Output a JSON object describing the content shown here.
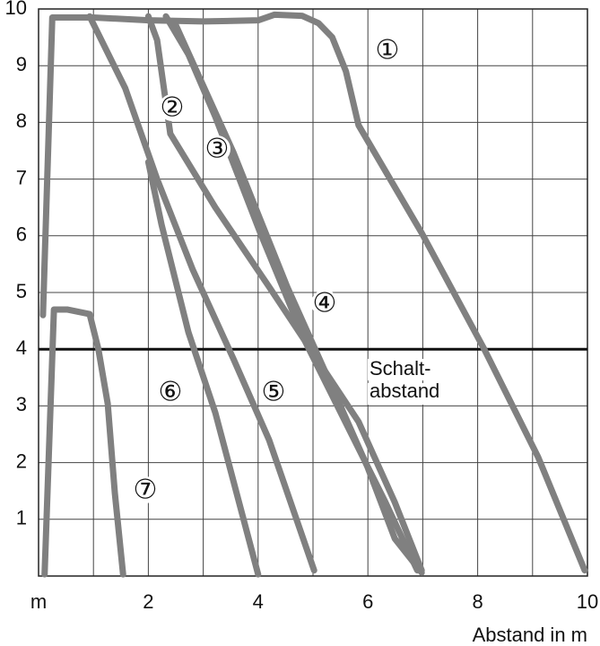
{
  "chart_data": {
    "type": "line",
    "x_label": "Abstand in m",
    "annotation": [
      "Schalt-",
      "abstand"
    ],
    "threshold": 4,
    "xlim": [
      0,
      10
    ],
    "ylim": [
      0,
      10
    ],
    "xticks": [
      {
        "value": 0,
        "label": "m"
      },
      2,
      4,
      6,
      8,
      10
    ],
    "xminor": [
      1,
      3,
      5,
      7,
      9
    ],
    "yticks": [
      1,
      2,
      3,
      4,
      5,
      6,
      7,
      8,
      9,
      10
    ],
    "grid": true,
    "series": [
      {
        "name": "①",
        "color": "#808080",
        "x": [
          0.08,
          0.25,
          1.0,
          2.0,
          3.0,
          4.0,
          4.3,
          4.8,
          5.1,
          5.35,
          5.6,
          5.83,
          6.98,
          8.12,
          9.1,
          9.95
        ],
        "values": [
          4.6,
          9.85,
          9.85,
          9.8,
          9.78,
          9.8,
          9.9,
          9.88,
          9.75,
          9.5,
          8.9,
          7.95,
          6.05,
          4.0,
          2.1,
          0.1
        ]
      },
      {
        "name": "②",
        "color": "#808080",
        "x": [
          2.0,
          2.16,
          2.24,
          2.4,
          3.22,
          4.2,
          5.18,
          5.83,
          6.49,
          6.98
        ],
        "values": [
          9.87,
          9.45,
          8.9,
          7.8,
          6.5,
          5.1,
          3.67,
          2.72,
          1.3,
          0.1
        ]
      },
      {
        "name": "③",
        "color": "#808080",
        "x": [
          2.32,
          2.73,
          3.22,
          4.04,
          4.85,
          5.67,
          6.32,
          6.9
        ],
        "values": [
          9.87,
          9.2,
          8.1,
          6.05,
          4.15,
          2.56,
          1.3,
          0.1
        ]
      },
      {
        "name": "④",
        "color": "#808080",
        "x": [
          2.48,
          3.55,
          4.53,
          5.34,
          5.99,
          6.49,
          6.98
        ],
        "values": [
          9.76,
          7.47,
          5.1,
          3.35,
          1.93,
          0.66,
          0.06
        ]
      },
      {
        "name": "⑤",
        "color": "#808080",
        "x": [
          0.93,
          1.58,
          2.16,
          2.81,
          3.55,
          4.2,
          5.02
        ],
        "values": [
          9.87,
          8.6,
          7.0,
          5.4,
          3.83,
          2.4,
          0.1
        ]
      },
      {
        "name": "⑥",
        "color": "#808080",
        "x": [
          2.0,
          2.24,
          2.73,
          3.22,
          4.0
        ],
        "values": [
          7.3,
          6.2,
          4.3,
          2.88,
          0.03
        ]
      },
      {
        "name": "⑦",
        "color": "#808080",
        "x": [
          0.11,
          0.28,
          0.52,
          0.93,
          1.09,
          1.26,
          1.39,
          1.54
        ],
        "values": [
          0.03,
          4.7,
          4.7,
          4.62,
          4.0,
          3.04,
          1.46,
          0.03
        ]
      }
    ]
  }
}
